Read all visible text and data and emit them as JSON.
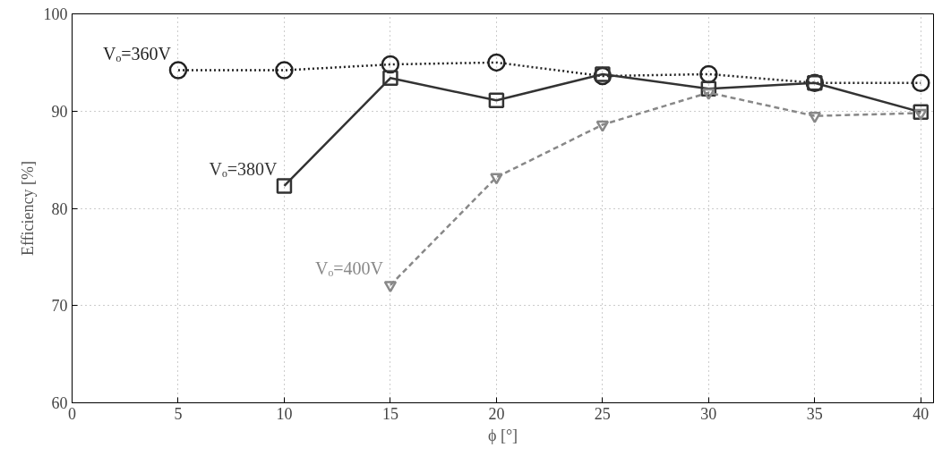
{
  "chart_data": {
    "type": "line",
    "xlabel": "ϕ [°]",
    "ylabel": "Efficiency [%]",
    "xlim": [
      0,
      40.6
    ],
    "ylim": [
      60,
      100
    ],
    "xticks": [
      0,
      5,
      10,
      15,
      20,
      25,
      30,
      35,
      40
    ],
    "yticks": [
      60,
      70,
      80,
      90,
      100
    ],
    "grid": true,
    "series": [
      {
        "name": "Vₒ=360V",
        "color": "#222222",
        "marker": "circle",
        "line_style": "dotted",
        "x": [
          5,
          10,
          15,
          20,
          25,
          30,
          35,
          40
        ],
        "values": [
          94.2,
          94.2,
          94.8,
          95.0,
          93.6,
          93.8,
          92.9,
          92.9
        ]
      },
      {
        "name": "Vₒ=380V",
        "color": "#333333",
        "marker": "square",
        "line_style": "solid",
        "x": [
          10,
          15,
          20,
          25,
          30,
          35,
          40
        ],
        "values": [
          82.3,
          93.4,
          91.1,
          93.8,
          92.3,
          92.9,
          89.9
        ]
      },
      {
        "name": "Vₒ=400V",
        "color": "#888888",
        "marker": "triangle",
        "line_style": "dashed",
        "x": [
          15,
          20,
          25,
          30,
          35,
          40
        ],
        "values": [
          72.1,
          83.2,
          88.6,
          91.9,
          89.5,
          89.8
        ]
      }
    ]
  }
}
